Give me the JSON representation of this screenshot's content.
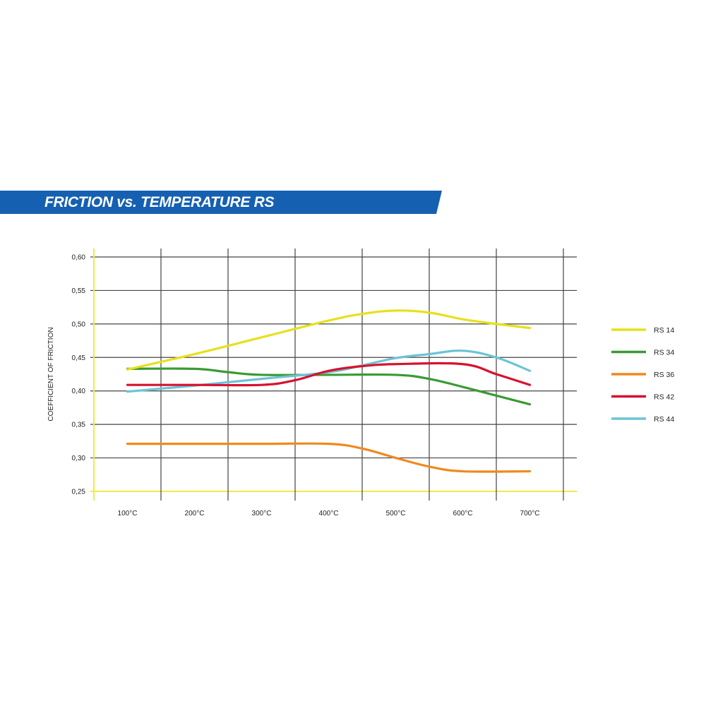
{
  "header": {
    "title": "FRICTION vs. TEMPERATURE RS",
    "banner_color": "#1560b0"
  },
  "chart_data": {
    "type": "line",
    "title": "FRICTION vs. TEMPERATURE RS",
    "xlabel": "",
    "ylabel": "COEFFICIENT OF FRICTION",
    "categories": [
      "100°C",
      "200°C",
      "300°C",
      "400°C",
      "500°C",
      "600°C",
      "700°C"
    ],
    "xlim": [
      50,
      750
    ],
    "ylim": [
      0.25,
      0.6
    ],
    "yticks": [
      "0,60",
      "0,55",
      "0,50",
      "0,45",
      "0,40",
      "0,35",
      "0,30",
      "0,25"
    ],
    "ytick_values": [
      0.6,
      0.55,
      0.5,
      0.45,
      0.4,
      0.35,
      0.3,
      0.25
    ],
    "grid": true,
    "legend_position": "right",
    "series": [
      {
        "name": "RS 14",
        "color": "#e8e01c",
        "x": [
          100,
          200,
          300,
          400,
          450,
          500,
          550,
          600,
          650,
          700
        ],
        "y": [
          0.432,
          0.455,
          0.48,
          0.505,
          0.515,
          0.52,
          0.517,
          0.507,
          0.5,
          0.494
        ]
      },
      {
        "name": "RS 34",
        "color": "#3a9a35",
        "x": [
          100,
          200,
          250,
          300,
          400,
          500,
          550,
          600,
          650,
          700
        ],
        "y": [
          0.433,
          0.433,
          0.428,
          0.424,
          0.424,
          0.424,
          0.418,
          0.406,
          0.393,
          0.38
        ]
      },
      {
        "name": "RS 36",
        "color": "#ee8a1e",
        "x": [
          100,
          200,
          300,
          400,
          450,
          500,
          550,
          600,
          700
        ],
        "y": [
          0.321,
          0.321,
          0.321,
          0.321,
          0.314,
          0.3,
          0.287,
          0.28,
          0.28
        ]
      },
      {
        "name": "RS 42",
        "color": "#d8112e",
        "x": [
          100,
          200,
          300,
          350,
          400,
          450,
          500,
          600,
          650,
          700
        ],
        "y": [
          0.409,
          0.409,
          0.409,
          0.416,
          0.43,
          0.437,
          0.44,
          0.44,
          0.425,
          0.409
        ]
      },
      {
        "name": "RS 44",
        "color": "#6cc4d4",
        "x": [
          100,
          200,
          300,
          400,
          450,
          500,
          550,
          600,
          650,
          700
        ],
        "y": [
          0.399,
          0.408,
          0.418,
          0.428,
          0.438,
          0.449,
          0.455,
          0.46,
          0.45,
          0.43
        ]
      }
    ]
  }
}
